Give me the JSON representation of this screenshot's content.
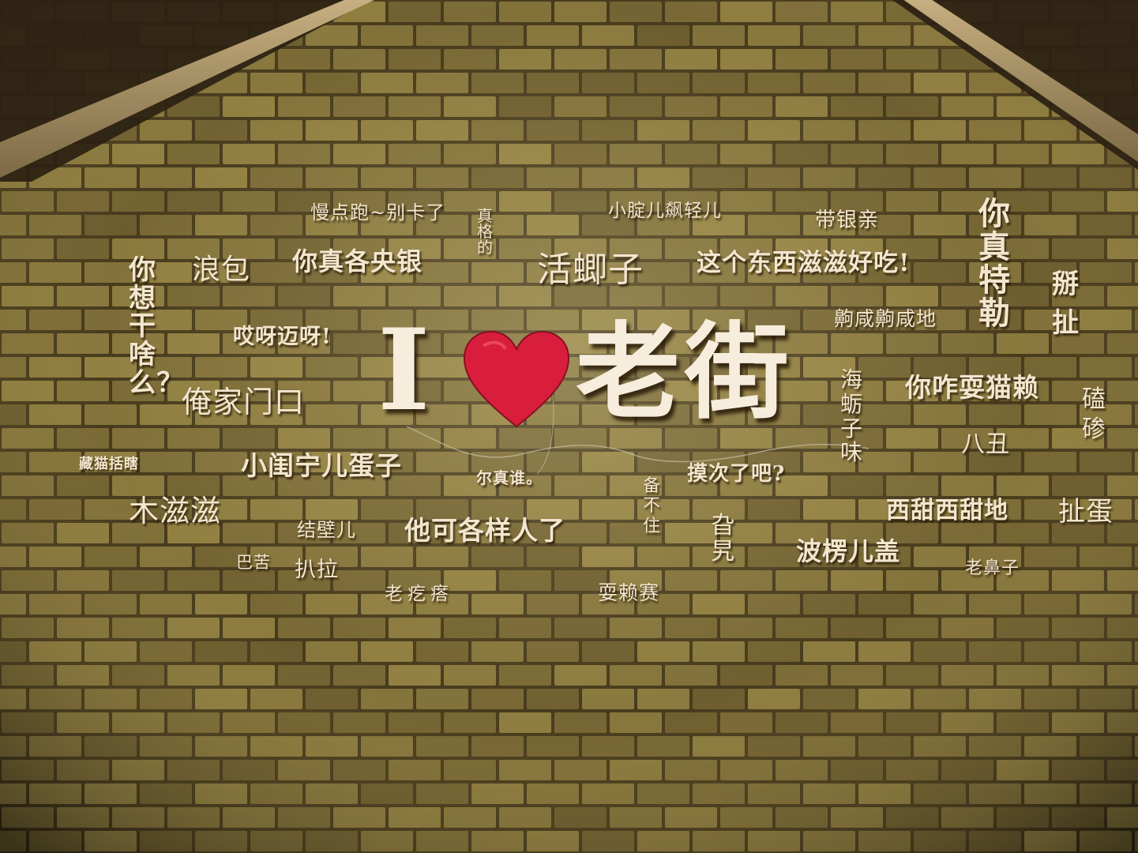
{
  "sign": {
    "letter_i": "I",
    "heart_icon": "heart-icon",
    "word": "老街",
    "heart_color": "#d81e3c"
  },
  "phrases": [
    {
      "id": "p1",
      "text": "慢点跑~别卡了"
    },
    {
      "id": "p2",
      "text": "真格的"
    },
    {
      "id": "p3",
      "text": "小腚儿飙轻儿"
    },
    {
      "id": "p4",
      "text": "带银亲"
    },
    {
      "id": "p5",
      "text": "你真特勒"
    },
    {
      "id": "p6",
      "text": "掰扯"
    },
    {
      "id": "p7",
      "text": "你想干啥么？"
    },
    {
      "id": "p8",
      "text": "浪包"
    },
    {
      "id": "p9",
      "text": "你真各央银"
    },
    {
      "id": "p10",
      "text": "活蝍子"
    },
    {
      "id": "p11",
      "text": "这个东西滋滋好吃!"
    },
    {
      "id": "p12",
      "text": "哎呀迈呀!"
    },
    {
      "id": "p13",
      "text": "齁咸齁咸地"
    },
    {
      "id": "p14",
      "text": "俺家门口"
    },
    {
      "id": "p15",
      "text": "海蛎子味"
    },
    {
      "id": "p16",
      "text": "你咋耍猫赖"
    },
    {
      "id": "p17",
      "text": "磕碜"
    },
    {
      "id": "p18",
      "text": "藏猫括瞎"
    },
    {
      "id": "p19",
      "text": "小闺宁儿蛋子"
    },
    {
      "id": "p20",
      "text": "尔真谁。"
    },
    {
      "id": "p21",
      "text": "备不住"
    },
    {
      "id": "p22",
      "text": "摸次了吧?"
    },
    {
      "id": "p23",
      "text": "八丑"
    },
    {
      "id": "p24",
      "text": "木滋滋"
    },
    {
      "id": "p25",
      "text": "西甜西甜地"
    },
    {
      "id": "p26",
      "text": "扯蛋"
    },
    {
      "id": "p27",
      "text": "结壁儿"
    },
    {
      "id": "p28",
      "text": "他可各样人了"
    },
    {
      "id": "p29",
      "text": "旮旯"
    },
    {
      "id": "p30",
      "text": "巴苦"
    },
    {
      "id": "p31",
      "text": "扒拉"
    },
    {
      "id": "p32",
      "text": "波楞儿盖"
    },
    {
      "id": "p33",
      "text": "老鼻子"
    },
    {
      "id": "p34",
      "text": "老疙瘩"
    },
    {
      "id": "p35",
      "text": "耍赖赛"
    }
  ],
  "colors": {
    "brick_light": "#8a7a3e",
    "brick_dark": "#4f4220",
    "mortar": "#3a2f16",
    "roof_beam": "#b39a6c",
    "text": "#f3e6cf"
  }
}
